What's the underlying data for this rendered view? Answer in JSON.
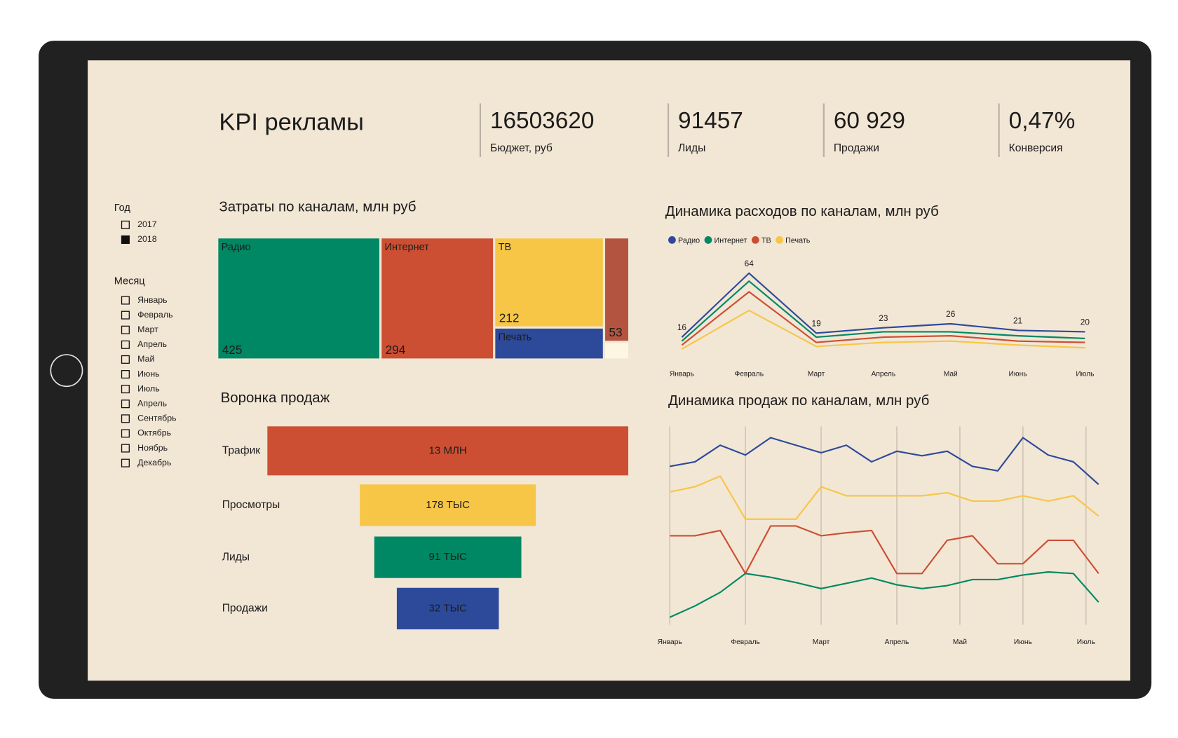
{
  "header": {
    "title": "KPI рекламы"
  },
  "kpis": [
    {
      "value": "16503620",
      "label": "Бюджет, руб"
    },
    {
      "value": "91457",
      "label": "Лиды"
    },
    {
      "value": "60 929",
      "label": "Продажи"
    },
    {
      "value": "0,47%",
      "label": "Конверсия"
    }
  ],
  "filters": {
    "year": {
      "title": "Год",
      "items": [
        {
          "label": "2017",
          "checked": false
        },
        {
          "label": "2018",
          "checked": true
        }
      ]
    },
    "month": {
      "title": "Месяц",
      "items": [
        {
          "label": "Январь",
          "checked": false
        },
        {
          "label": "Февраль",
          "checked": false
        },
        {
          "label": "Март",
          "checked": false
        },
        {
          "label": "Апрель",
          "checked": false
        },
        {
          "label": "Май",
          "checked": false
        },
        {
          "label": "Июнь",
          "checked": false
        },
        {
          "label": "Июль",
          "checked": false
        },
        {
          "label": "Апрель",
          "checked": false
        },
        {
          "label": "Сентябрь",
          "checked": false
        },
        {
          "label": "Октябрь",
          "checked": false
        },
        {
          "label": "Ноябрь",
          "checked": false
        },
        {
          "label": "Декабрь",
          "checked": false
        }
      ]
    }
  },
  "chart_data": [
    {
      "type": "treemap",
      "title": "Затраты по каналам, млн руб",
      "categories": [
        "Радио",
        "Интернет",
        "ТВ",
        "Печать",
        null,
        null
      ],
      "values": [
        425,
        294,
        212,
        72,
        53,
        8
      ],
      "colors": [
        "#008864",
        "#cc4f33",
        "#f7c646",
        "#2d4a9a",
        "#b35440",
        "#fdf6e3"
      ]
    },
    {
      "type": "funnel",
      "title": "Воронка продаж",
      "categories": [
        "Трафик",
        "Просмотры",
        "Лиды",
        "Продажи"
      ],
      "values": [
        13000000,
        178000,
        91000,
        32000
      ],
      "value_labels": [
        "13 МЛН",
        "178 ТЫС",
        "91 ТЫС",
        "32 ТЫС"
      ],
      "colors": [
        "#cc4f33",
        "#f7c646",
        "#008864",
        "#2d4a9a"
      ],
      "log": true,
      "xlim": [
        3000,
        13000000
      ]
    },
    {
      "type": "line",
      "title": "Динамика расходов по каналам, млн руб",
      "categories": [
        "Январь",
        "Февраль",
        "Март",
        "Апрель",
        "Май",
        "Июнь",
        "Июль"
      ],
      "legend": "top-left",
      "series": [
        {
          "name": "Радио",
          "color": "#2d4a9a",
          "values": [
            16,
            64,
            19,
            23,
            26,
            21,
            20
          ]
        },
        {
          "name": "Интернет",
          "color": "#008864",
          "values": [
            13,
            58,
            16,
            20,
            20,
            17,
            15
          ]
        },
        {
          "name": "ТВ",
          "color": "#cc4f33",
          "values": [
            10,
            50,
            12,
            16,
            17,
            13,
            12
          ]
        },
        {
          "name": "Печать",
          "color": "#f7c646",
          "values": [
            7,
            36,
            9,
            12,
            13,
            10,
            8
          ]
        }
      ]
    },
    {
      "type": "line",
      "title": "Динамика продаж по каналам, млн руб",
      "x": [
        0,
        1,
        2,
        3,
        4,
        5,
        6,
        7,
        8,
        9,
        10,
        11,
        12,
        13,
        14,
        15,
        16,
        17
      ],
      "xlim": [
        0,
        17
      ],
      "xticks": [
        {
          "value": 0,
          "label": "Январь"
        },
        {
          "value": 3,
          "label": "Февраль"
        },
        {
          "value": 6,
          "label": "Март"
        },
        {
          "value": 9,
          "label": "Апрель"
        },
        {
          "value": 11.5,
          "label": "Май"
        },
        {
          "value": 14,
          "label": "Июнь"
        },
        {
          "value": 16.5,
          "label": "Июль"
        }
      ],
      "grid": true,
      "series": [
        {
          "color": "#2d4a9a",
          "values": [
            22.2,
            22.8,
            25,
            23.7,
            26,
            25,
            24,
            25,
            22.8,
            24.2,
            23.6,
            24.2,
            22.2,
            21.6,
            26,
            23.7,
            22.8,
            19.8
          ]
        },
        {
          "color": "#f7c646",
          "values": [
            18.8,
            19.5,
            20.9,
            15.2,
            15.2,
            15.2,
            19.5,
            18.3,
            18.3,
            18.3,
            18.3,
            18.7,
            17.6,
            17.6,
            18.3,
            17.6,
            18.3,
            15.6
          ]
        },
        {
          "color": "#cc4f33",
          "values": [
            13,
            13,
            13.7,
            8,
            14.3,
            14.3,
            13,
            13.4,
            13.7,
            8,
            8,
            12.4,
            13,
            9.3,
            9.3,
            12.4,
            12.4,
            8
          ]
        },
        {
          "color": "#008864",
          "values": [
            2.2,
            3.7,
            5.5,
            8,
            7.5,
            6.8,
            6,
            6.7,
            7.4,
            6.5,
            6,
            6.4,
            7.2,
            7.2,
            7.8,
            8.2,
            8,
            4.2
          ]
        }
      ]
    }
  ]
}
